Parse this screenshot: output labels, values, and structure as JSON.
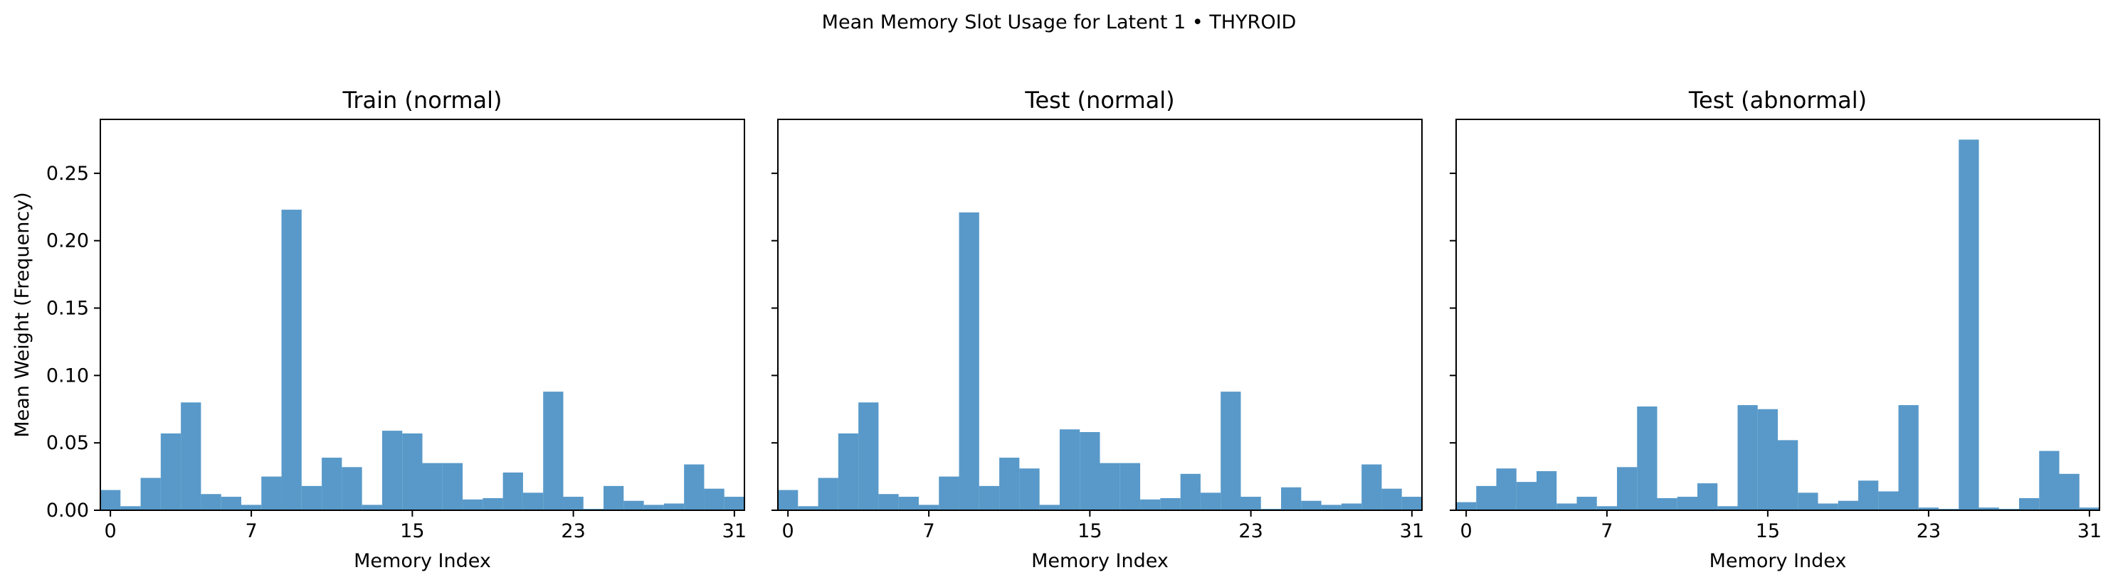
{
  "figure": {
    "suptitle": "Mean Memory Slot Usage for Latent 1 • THYROID"
  },
  "chart_data": {
    "type": "bar",
    "bar_color": "#4a90c4",
    "ylabel": "Mean Weight (Frequency)",
    "xlabel": "Memory Index",
    "ylim": [
      0,
      0.29
    ],
    "xlim": [
      -0.5,
      31.5
    ],
    "yticks": [
      0.0,
      0.05,
      0.1,
      0.15,
      0.2,
      0.25
    ],
    "ytick_labels": [
      "0.00",
      "0.05",
      "0.10",
      "0.15",
      "0.20",
      "0.25"
    ],
    "xticks": [
      0,
      7,
      15,
      23,
      31
    ],
    "xtick_labels": [
      "0",
      "7",
      "15",
      "23",
      "31"
    ],
    "grid": false,
    "shared_y": true,
    "panels": [
      {
        "title": "Train (normal)",
        "x": [
          0,
          1,
          2,
          3,
          4,
          5,
          6,
          7,
          8,
          9,
          10,
          11,
          12,
          13,
          14,
          15,
          16,
          17,
          18,
          19,
          20,
          21,
          22,
          23,
          24,
          25,
          26,
          27,
          28,
          29,
          30,
          31
        ],
        "values": [
          0.015,
          0.003,
          0.024,
          0.057,
          0.08,
          0.012,
          0.01,
          0.004,
          0.025,
          0.223,
          0.018,
          0.039,
          0.032,
          0.004,
          0.059,
          0.057,
          0.035,
          0.035,
          0.008,
          0.009,
          0.028,
          0.013,
          0.088,
          0.01,
          0.001,
          0.018,
          0.007,
          0.004,
          0.005,
          0.034,
          0.016,
          0.01
        ]
      },
      {
        "title": "Test (normal)",
        "x": [
          0,
          1,
          2,
          3,
          4,
          5,
          6,
          7,
          8,
          9,
          10,
          11,
          12,
          13,
          14,
          15,
          16,
          17,
          18,
          19,
          20,
          21,
          22,
          23,
          24,
          25,
          26,
          27,
          28,
          29,
          30,
          31
        ],
        "values": [
          0.015,
          0.003,
          0.024,
          0.057,
          0.08,
          0.012,
          0.01,
          0.004,
          0.025,
          0.221,
          0.018,
          0.039,
          0.031,
          0.004,
          0.06,
          0.058,
          0.035,
          0.035,
          0.008,
          0.009,
          0.027,
          0.013,
          0.088,
          0.01,
          0.001,
          0.017,
          0.007,
          0.004,
          0.005,
          0.034,
          0.016,
          0.01
        ]
      },
      {
        "title": "Test (abnormal)",
        "x": [
          0,
          1,
          2,
          3,
          4,
          5,
          6,
          7,
          8,
          9,
          10,
          11,
          12,
          13,
          14,
          15,
          16,
          17,
          18,
          19,
          20,
          21,
          22,
          23,
          24,
          25,
          26,
          27,
          28,
          29,
          30,
          31
        ],
        "values": [
          0.006,
          0.018,
          0.031,
          0.021,
          0.029,
          0.005,
          0.01,
          0.003,
          0.032,
          0.077,
          0.009,
          0.01,
          0.02,
          0.003,
          0.078,
          0.075,
          0.052,
          0.013,
          0.005,
          0.007,
          0.022,
          0.014,
          0.078,
          0.002,
          0.001,
          0.275,
          0.002,
          0.001,
          0.009,
          0.044,
          0.027,
          0.002
        ]
      }
    ]
  }
}
